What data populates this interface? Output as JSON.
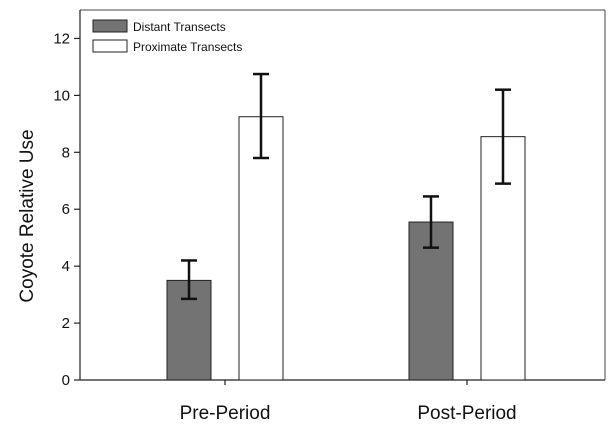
{
  "chart_data": {
    "type": "bar",
    "title": "",
    "xlabel": "",
    "ylabel": "Coyote Relative Use",
    "ylim": [
      0,
      13
    ],
    "yticks": [
      0,
      2,
      4,
      6,
      8,
      10,
      12
    ],
    "categories": [
      "Pre-Period",
      "Post-Period"
    ],
    "series": [
      {
        "name": "Distant Transects",
        "color": "#737373",
        "values": [
          3.5,
          5.55
        ],
        "error_low": [
          2.85,
          4.65
        ],
        "error_high": [
          4.2,
          6.45
        ]
      },
      {
        "name": "Proximate Transects",
        "color": "#ffffff",
        "values": [
          9.25,
          8.55
        ],
        "error_low": [
          7.8,
          6.9
        ],
        "error_high": [
          10.75,
          10.2
        ]
      }
    ],
    "grid": false,
    "legend_position": "top-left"
  }
}
